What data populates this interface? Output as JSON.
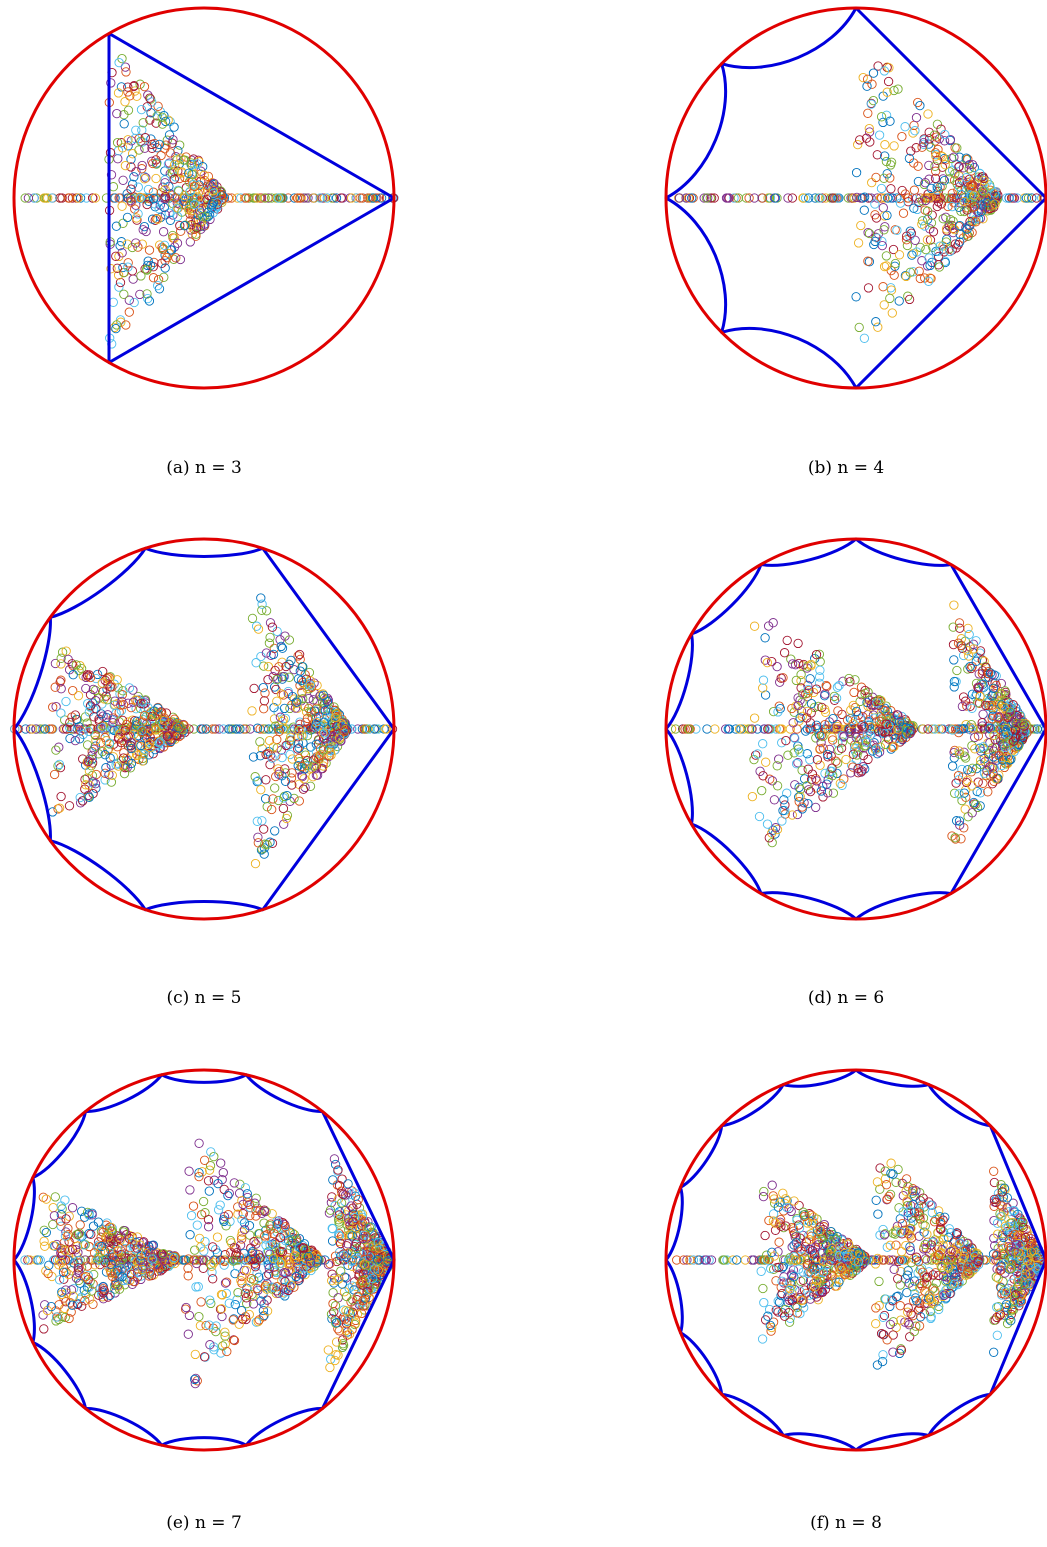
{
  "figure": {
    "colors": {
      "circle": "#e00000",
      "boundary": "#0000dd",
      "palette": [
        "#0072bd",
        "#d95319",
        "#edb120",
        "#7e2f8e",
        "#77ac30",
        "#4dbeee",
        "#a2142f"
      ]
    },
    "marker": "open-circle"
  },
  "chart_data": [
    {
      "type": "scatter",
      "n": 3,
      "caption": "(a) n = 3",
      "xlim": [
        -1,
        1
      ],
      "ylim": [
        -1,
        1
      ],
      "unit_circle": true,
      "boundary": "convex hull of cube roots of unity (triangle with vertices 1, e^{±2πi/3})",
      "clusters": [
        {
          "x_range": [
            -0.5,
            0.1
          ],
          "y_extent": 0.87,
          "shape": "wedge pointing right"
        }
      ],
      "real_axis_points": {
        "x_range": [
          -0.95,
          1.0
        ]
      }
    },
    {
      "type": "scatter",
      "n": 4,
      "caption": "(b) n = 4",
      "xlim": [
        -1,
        1
      ],
      "ylim": [
        -1,
        1
      ],
      "unit_circle": true,
      "boundary": "square edges on right half (vertices 1, ±i), curved arcs on left half",
      "clusters": [
        {
          "x_range": [
            0.0,
            0.75
          ],
          "y_extent": 0.92,
          "shape": "wedge pointing right"
        }
      ],
      "real_axis_points": {
        "x_range": [
          -1.0,
          1.0
        ]
      }
    },
    {
      "type": "scatter",
      "n": 5,
      "caption": "(c) n = 5",
      "xlim": [
        -1,
        1
      ],
      "ylim": [
        -1,
        1
      ],
      "unit_circle": true,
      "boundary": "pentagon edges near z=1, curved arcs elsewhere",
      "clusters": [
        {
          "x_range": [
            -0.8,
            -0.1
          ],
          "y_extent": 0.5,
          "shape": "wedge pointing right"
        },
        {
          "x_range": [
            0.25,
            0.75
          ],
          "y_extent": 0.8,
          "shape": "wedge pointing right"
        }
      ],
      "real_axis_points": {
        "x_range": [
          -1.0,
          1.0
        ]
      }
    },
    {
      "type": "scatter",
      "n": 6,
      "caption": "(d) n = 6",
      "xlim": [
        -1,
        1
      ],
      "ylim": [
        -1,
        1
      ],
      "unit_circle": true,
      "boundary": "hexagon edges near z=1, curved arcs elsewhere",
      "clusters": [
        {
          "x_range": [
            -0.55,
            0.3
          ],
          "y_extent": 0.7,
          "shape": "wedge pointing right"
        },
        {
          "x_range": [
            0.5,
            0.9
          ],
          "y_extent": 0.7,
          "shape": "wedge pointing right"
        }
      ],
      "real_axis_points": {
        "x_range": [
          -1.0,
          1.0
        ]
      }
    },
    {
      "type": "scatter",
      "n": 7,
      "caption": "(e) n = 7",
      "xlim": [
        -1,
        1
      ],
      "ylim": [
        -1,
        1
      ],
      "unit_circle": true,
      "boundary": "heptagon edges near z=1, curved arcs elsewhere",
      "clusters": [
        {
          "x_range": [
            -0.85,
            -0.15
          ],
          "y_extent": 0.38,
          "shape": "wedge pointing right"
        },
        {
          "x_range": [
            -0.1,
            0.6
          ],
          "y_extent": 0.72,
          "shape": "wedge pointing right"
        },
        {
          "x_range": [
            0.65,
            0.98
          ],
          "y_extent": 0.62,
          "shape": "wedge pointing right"
        }
      ],
      "real_axis_points": {
        "x_range": [
          -0.95,
          1.0
        ]
      }
    },
    {
      "type": "scatter",
      "n": 8,
      "caption": "(f) n = 8",
      "xlim": [
        -1,
        1
      ],
      "ylim": [
        -1,
        1
      ],
      "unit_circle": true,
      "boundary": "octagon edges near z=1, curved arcs elsewhere",
      "clusters": [
        {
          "x_range": [
            -0.5,
            0.05
          ],
          "y_extent": 0.45,
          "shape": "wedge pointing right"
        },
        {
          "x_range": [
            0.1,
            0.65
          ],
          "y_extent": 0.65,
          "shape": "wedge pointing right"
        },
        {
          "x_range": [
            0.72,
            0.98
          ],
          "y_extent": 0.5,
          "shape": "wedge pointing right"
        }
      ],
      "real_axis_points": {
        "x_range": [
          -0.95,
          1.0
        ]
      }
    }
  ]
}
